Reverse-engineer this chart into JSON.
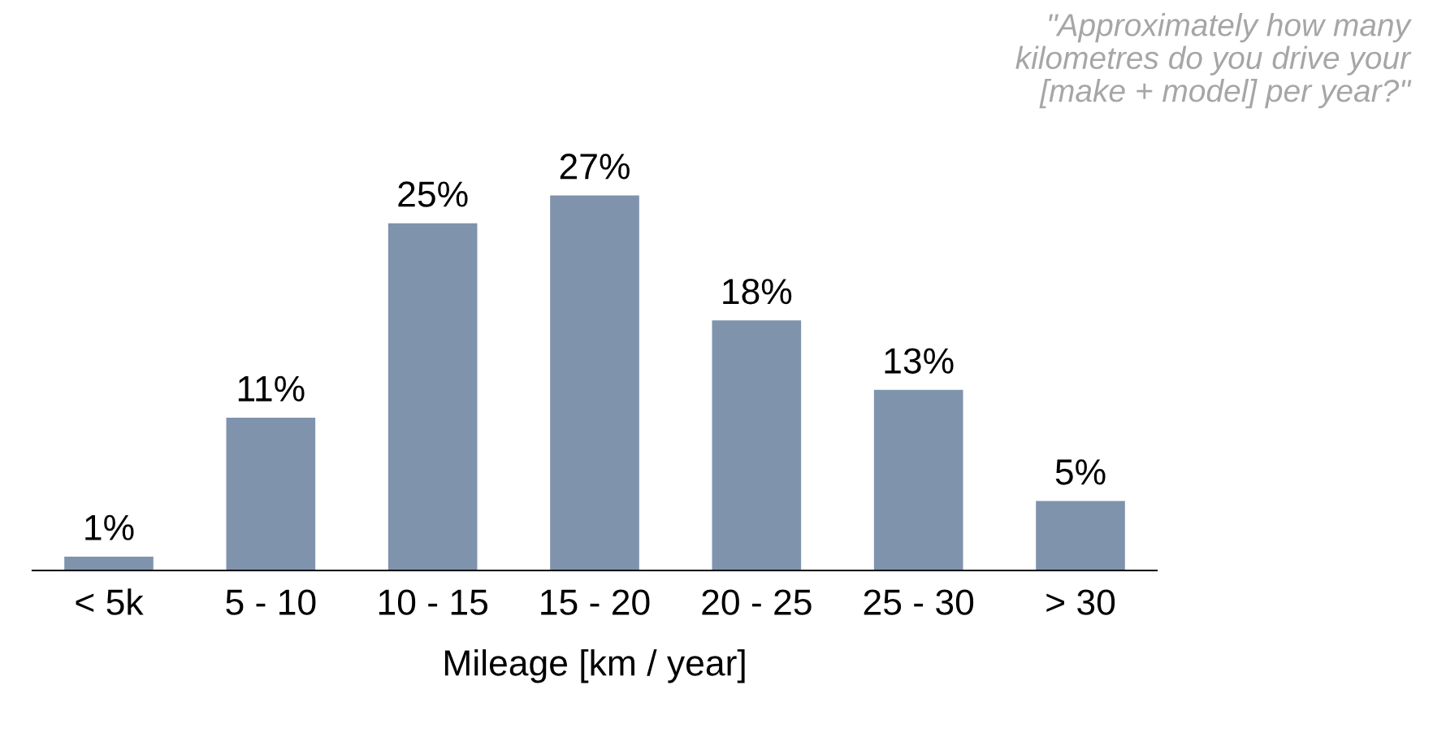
{
  "chart_data": {
    "type": "bar",
    "title": "\"Approximately how many\nkilometres do you drive your\n[make + model] per year?\"",
    "xlabel": "Mileage [km / year]",
    "categories": [
      "< 5k",
      "5 - 10",
      "10 - 15",
      "15 - 20",
      "20 - 25",
      "25 - 30",
      "> 30"
    ],
    "values": [
      1,
      11,
      25,
      27,
      18,
      13,
      5
    ],
    "value_labels": [
      "1%",
      "11%",
      "25%",
      "27%",
      "18%",
      "13%",
      "5%"
    ],
    "color": "#7f93ad",
    "grid": false,
    "legend": false
  }
}
